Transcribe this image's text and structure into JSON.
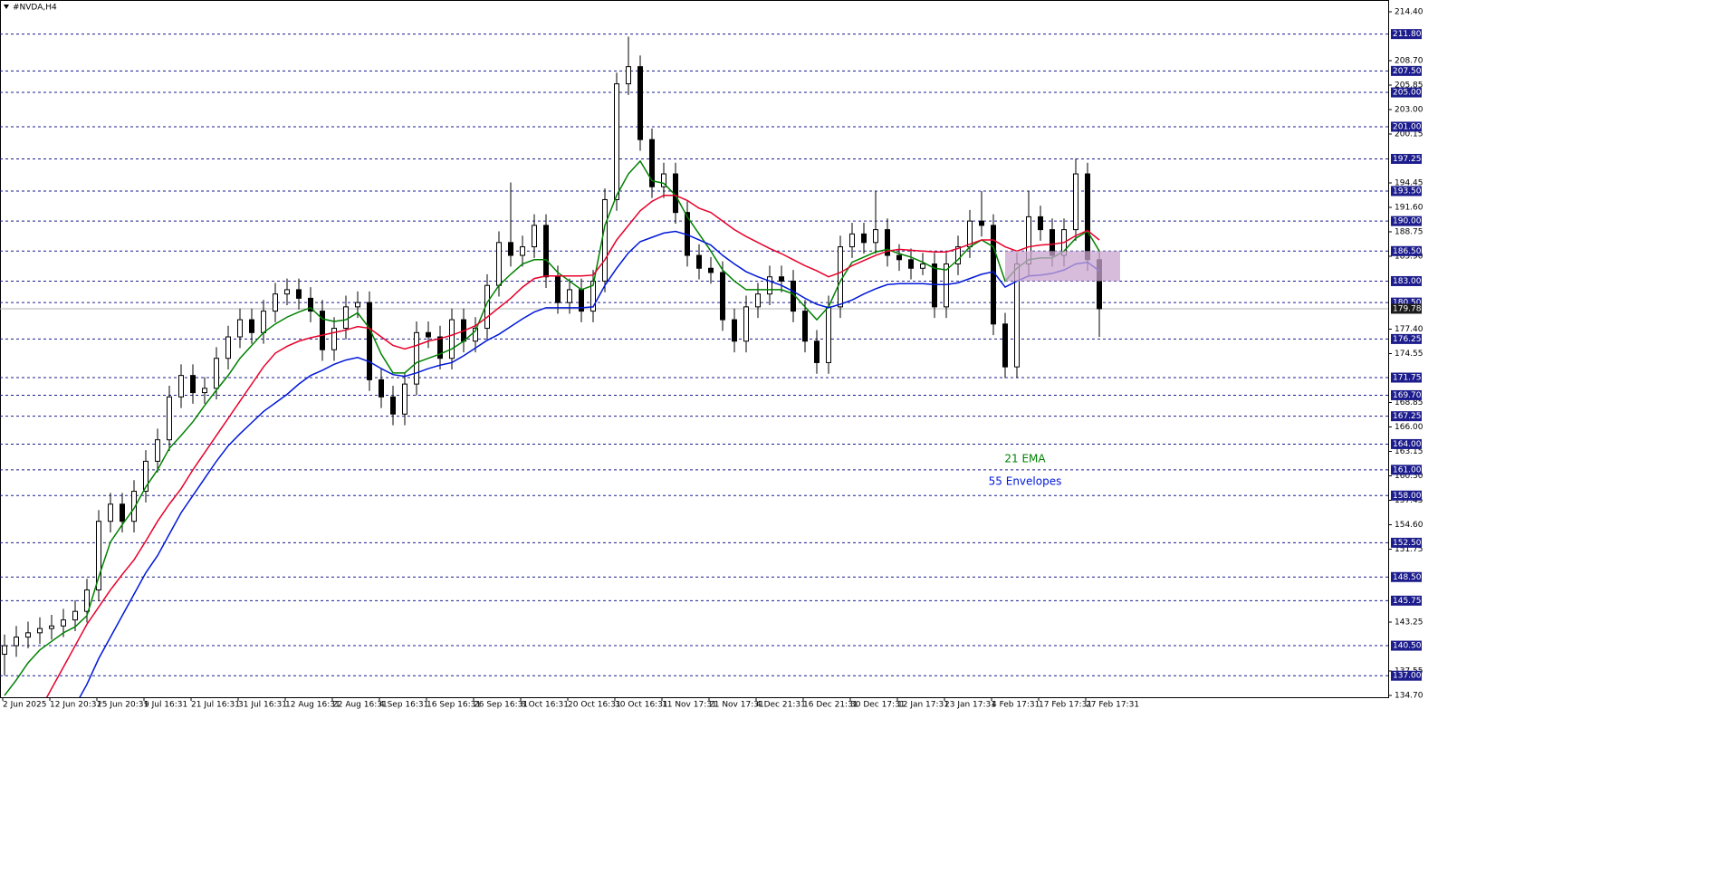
{
  "chart_data": {
    "type": "candlestick",
    "title": "#NVDA,H4",
    "categories": [
      "2 Jun 2025",
      null,
      null,
      null,
      "12 Jun 20:31",
      null,
      null,
      null,
      "25 Jun 20:31",
      null,
      null,
      null,
      "9 Jul 16:31",
      null,
      null,
      null,
      "21 Jul 16:31",
      null,
      null,
      null,
      "31 Jul 16:31",
      null,
      null,
      null,
      "12 Aug 16:31",
      null,
      null,
      null,
      "22 Aug 16:31",
      null,
      null,
      null,
      "4 Sep 16:31",
      null,
      null,
      null,
      "16 Sep 16:31",
      null,
      null,
      null,
      "26 Sep 16:31",
      null,
      null,
      null,
      "8 Oct 16:31",
      null,
      null,
      null,
      "20 Oct 16:31",
      null,
      null,
      null,
      "30 Oct 16:31",
      null,
      null,
      null,
      "11 Nov 17:31",
      null,
      null,
      null,
      "21 Nov 17:31",
      null,
      null,
      null,
      "4 Dec 21:31",
      null,
      null,
      null,
      "16 Dec 21:31",
      null,
      null,
      null,
      "30 Dec 17:31",
      null,
      null,
      null,
      "12 Jan 17:31",
      null,
      null,
      null,
      "23 Jan 17:31",
      null,
      null,
      null,
      "4 Feb 17:31",
      null,
      null,
      null,
      "17 Feb 17:31",
      null,
      null,
      null,
      "27 Feb 17:31",
      null
    ],
    "open": [
      139.5,
      140.5,
      141.5,
      142.0,
      142.5,
      142.8,
      143.5,
      144.5,
      147.0,
      155.0,
      157.0,
      155.0,
      158.5,
      162.0,
      164.5,
      169.5,
      172.0,
      170.0,
      170.5,
      174.0,
      176.5,
      178.5,
      177.0,
      179.5,
      181.5,
      182.0,
      181.0,
      179.5,
      175.0,
      177.5,
      180.0,
      180.5,
      171.5,
      169.5,
      167.5,
      171.0,
      177.0,
      176.5,
      174.0,
      178.5,
      176.0,
      177.5,
      182.5,
      187.5,
      186.0,
      187.0,
      189.5,
      183.5,
      180.5,
      182.0,
      179.5,
      183.0,
      192.5,
      206.0,
      208.0,
      199.5,
      194.0,
      195.5,
      191.0,
      186.0,
      184.5,
      184.0,
      178.5,
      176.0,
      180.0,
      181.5,
      183.5,
      183.0,
      179.5,
      176.0,
      173.5,
      180.0,
      187.0,
      188.5,
      187.5,
      189.0,
      186.0,
      185.5,
      184.5,
      185.0,
      180.0,
      185.0,
      187.0,
      190.0,
      189.5,
      178.0,
      173.0,
      185.0,
      190.5,
      189.0,
      186.0,
      189.0,
      195.5,
      185.5
    ],
    "high": [
      141.8,
      142.8,
      143.3,
      143.8,
      144.1,
      144.8,
      145.8,
      148.3,
      156.3,
      158.3,
      158.3,
      159.8,
      163.3,
      165.8,
      170.8,
      173.3,
      173.3,
      171.8,
      175.3,
      177.8,
      179.8,
      179.8,
      180.8,
      182.8,
      183.3,
      183.3,
      182.3,
      180.8,
      178.8,
      181.3,
      181.8,
      181.8,
      172.8,
      170.8,
      172.3,
      178.3,
      178.3,
      177.8,
      179.8,
      179.8,
      178.8,
      183.8,
      188.8,
      194.5,
      188.3,
      190.8,
      190.8,
      184.8,
      183.3,
      183.3,
      184.3,
      193.8,
      207.3,
      211.5,
      209.3,
      200.8,
      196.8,
      196.8,
      192.3,
      187.3,
      185.8,
      185.3,
      179.8,
      181.3,
      182.8,
      184.8,
      184.8,
      184.3,
      180.8,
      177.3,
      181.3,
      188.3,
      189.8,
      189.8,
      193.5,
      190.3,
      187.3,
      186.8,
      186.3,
      186.3,
      186.3,
      188.3,
      191.3,
      193.5,
      190.8,
      179.3,
      186.3,
      193.5,
      191.8,
      190.3,
      190.3,
      197.3,
      196.8,
      186.5
    ],
    "low": [
      137.0,
      139.2,
      140.2,
      140.7,
      141.2,
      141.5,
      142.2,
      143.2,
      145.7,
      153.7,
      153.7,
      153.7,
      157.2,
      160.7,
      163.2,
      168.2,
      168.7,
      168.7,
      169.2,
      172.7,
      175.2,
      175.7,
      175.7,
      178.2,
      180.2,
      179.7,
      178.2,
      173.7,
      173.7,
      176.2,
      178.7,
      170.2,
      168.2,
      166.2,
      166.2,
      169.7,
      175.2,
      172.7,
      172.7,
      174.7,
      174.7,
      176.2,
      181.2,
      184.7,
      184.7,
      185.7,
      182.2,
      179.2,
      179.2,
      178.2,
      178.2,
      181.7,
      191.2,
      204.7,
      198.2,
      192.7,
      192.7,
      189.7,
      184.7,
      183.2,
      182.7,
      177.2,
      174.7,
      174.7,
      178.7,
      180.2,
      181.7,
      178.2,
      174.7,
      172.2,
      172.2,
      178.7,
      185.7,
      186.2,
      186.2,
      184.7,
      184.2,
      183.2,
      183.7,
      178.7,
      178.7,
      183.7,
      185.7,
      188.2,
      176.7,
      171.7,
      171.7,
      183.7,
      187.7,
      184.7,
      184.7,
      187.7,
      184.2,
      176.5
    ],
    "close": [
      140.5,
      141.5,
      142.0,
      142.5,
      142.8,
      143.5,
      144.5,
      147.0,
      155.0,
      157.0,
      155.0,
      158.5,
      162.0,
      164.5,
      169.5,
      172.0,
      170.0,
      170.5,
      174.0,
      176.5,
      178.5,
      177.0,
      179.5,
      181.5,
      182.0,
      181.0,
      179.5,
      175.0,
      177.5,
      180.0,
      180.5,
      171.5,
      169.5,
      167.5,
      171.0,
      177.0,
      176.5,
      174.0,
      178.5,
      176.0,
      177.5,
      182.5,
      187.5,
      186.0,
      187.0,
      189.5,
      183.5,
      180.5,
      182.0,
      179.5,
      183.0,
      192.5,
      206.0,
      208.0,
      199.5,
      194.0,
      195.5,
      191.0,
      186.0,
      184.5,
      184.0,
      178.5,
      176.0,
      180.0,
      181.5,
      183.5,
      183.0,
      179.5,
      176.0,
      173.5,
      180.0,
      187.0,
      188.5,
      187.5,
      189.0,
      186.0,
      185.5,
      184.5,
      185.0,
      180.0,
      185.0,
      187.0,
      190.0,
      189.5,
      178.0,
      173.0,
      185.0,
      190.5,
      189.0,
      186.0,
      189.0,
      195.5,
      185.5,
      179.78
    ],
    "up_color": "#ffffff",
    "down_color": "#000000",
    "overlays": [
      {
        "name": "21 EMA",
        "color": "#008000",
        "values": [
          134.7,
          136.5,
          138.5,
          140.0,
          141.0,
          142.0,
          142.7,
          144.0,
          148.5,
          152.6,
          154.6,
          156.5,
          159.0,
          161.0,
          163.5,
          165.0,
          166.6,
          168.5,
          170.3,
          172.0,
          174.0,
          175.5,
          177.0,
          178.0,
          178.8,
          179.4,
          179.9,
          178.6,
          178.3,
          178.5,
          179.3,
          177.5,
          174.5,
          172.3,
          172.3,
          173.5,
          174.0,
          174.5,
          175.1,
          176.0,
          177.2,
          180.5,
          182.5,
          183.8,
          185.0,
          185.5,
          185.5,
          184.0,
          183.0,
          182.0,
          182.5,
          189.5,
          193.0,
          195.5,
          197.0,
          194.7,
          194.4,
          193.0,
          190.5,
          188.5,
          186.5,
          184.3,
          183.0,
          182.0,
          182.0,
          182.0,
          182.0,
          181.5,
          180.0,
          178.5,
          180.0,
          183.0,
          185.2,
          185.8,
          186.4,
          186.7,
          186.2,
          185.8,
          185.2,
          184.5,
          184.3,
          185.5,
          187.0,
          187.8,
          187.0,
          183.0,
          184.5,
          185.5,
          185.7,
          185.7,
          186.5,
          188.0,
          188.8,
          186.5
        ]
      },
      {
        "color": "#e8002a",
        "values": [
          126,
          128,
          130.5,
          133,
          135.5,
          138,
          140.5,
          143,
          145,
          147,
          148.8,
          150.5,
          152.7,
          155,
          157,
          158.8,
          161,
          163,
          165,
          167,
          169,
          171,
          173,
          174.6,
          175.4,
          176,
          176.4,
          176.7,
          177,
          177.3,
          177.7,
          177.5,
          176.5,
          175.5,
          175.1,
          175.5,
          176,
          176.3,
          176.7,
          177.2,
          177.8,
          178.8,
          179.9,
          181,
          182.3,
          183.3,
          183.6,
          183.6,
          183.6,
          183.6,
          183.7,
          185.5,
          187.8,
          189.5,
          191.2,
          192.3,
          193,
          193,
          192.4,
          191.5,
          191,
          190,
          189,
          188.2,
          187.5,
          186.8,
          186.2,
          185.5,
          184.8,
          184.2,
          183.5,
          184,
          184.8,
          185.4,
          186,
          186.5,
          186.7,
          186.6,
          186.5,
          186.4,
          186.4,
          186.8,
          187.3,
          187.8,
          187.8,
          187,
          186.5,
          187,
          187.2,
          187.3,
          187.5,
          188.3,
          188.9,
          187.8
        ]
      },
      {
        "name": "55 Envelopes",
        "color": "#0018d8",
        "values": [
          119,
          121,
          123.5,
          126,
          128.5,
          131,
          133.5,
          136,
          139,
          141.5,
          144,
          146.5,
          149,
          151,
          153.5,
          156,
          158,
          160,
          162,
          163.8,
          165.2,
          166.5,
          167.8,
          168.8,
          169.8,
          171,
          172,
          172.6,
          173.3,
          173.8,
          174.1,
          173.6,
          172.8,
          172.1,
          171.9,
          172.3,
          172.8,
          173.2,
          173.5,
          174.3,
          175.2,
          176.1,
          176.8,
          177.7,
          178.6,
          179.4,
          179.9,
          179.9,
          179.9,
          179.9,
          180,
          182.5,
          184.5,
          186.3,
          187.6,
          188.1,
          188.6,
          188.8,
          188.4,
          187.8,
          187.2,
          186,
          185,
          184.1,
          183.5,
          183,
          182.5,
          181.8,
          181,
          180.3,
          179.9,
          180.3,
          180.8,
          181.5,
          182.1,
          182.6,
          182.7,
          182.7,
          182.7,
          182.6,
          182.6,
          182.8,
          183.3,
          183.8,
          184.1,
          182.3,
          183,
          183.6,
          183.7,
          183.9,
          184.3,
          185,
          185.2,
          184.2
        ]
      }
    ],
    "ylim": [
      134.7,
      214.4
    ],
    "yticks": [
      {
        "value": 214.4,
        "label": "214.40"
      },
      {
        "value": 208.7,
        "label": "208.70"
      },
      205.85,
      {
        "value": 203.0,
        "label": "203.00"
      },
      200.15,
      194.45,
      {
        "value": 191.6,
        "label": "191.60"
      },
      188.75,
      {
        "value": 185.9,
        "label": "185.90"
      },
      {
        "value": 177.4,
        "label": "177.40"
      },
      174.55,
      168.85,
      {
        "value": 166.0,
        "label": "166.00"
      },
      163.15,
      {
        "value": 160.3,
        "label": "160.30"
      },
      157.45,
      {
        "value": 154.6,
        "label": "154.60"
      },
      151.75,
      143.25,
      137.55,
      {
        "value": 134.7,
        "label": "134.70"
      }
    ],
    "levels": [
      {
        "value": 211.8,
        "label": "211.80"
      },
      {
        "value": 207.5,
        "label": "207.50"
      },
      {
        "value": 205.0,
        "label": "205.00"
      },
      {
        "value": 201.0,
        "label": "201.00"
      },
      197.25,
      {
        "value": 193.5,
        "label": "193.50"
      },
      {
        "value": 190.0,
        "label": "190.00"
      },
      {
        "value": 186.5,
        "label": "186.50"
      },
      {
        "value": 183.0,
        "label": "183.00"
      },
      {
        "value": 180.5,
        "label": "180.50"
      },
      176.25,
      171.75,
      {
        "value": 169.7,
        "label": "169.70"
      },
      167.25,
      {
        "value": 164.0,
        "label": "164.00"
      },
      {
        "value": 161.0,
        "label": "161.00"
      },
      {
        "value": 158.0,
        "label": "158.00"
      },
      {
        "value": 152.5,
        "label": "152.50"
      },
      {
        "value": 148.5,
        "label": "148.50"
      },
      145.75,
      {
        "value": 140.5,
        "label": "140.50"
      },
      {
        "value": 137.0,
        "label": "137.00"
      }
    ],
    "levels_color": "#1c1c8c",
    "last_price": 179.78,
    "zone": {
      "ylim": [
        183.0,
        186.5
      ],
      "color": "#c9a6cf"
    }
  }
}
